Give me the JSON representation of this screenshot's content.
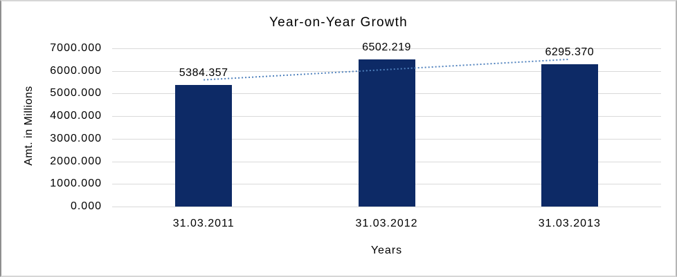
{
  "chart_data": {
    "type": "bar",
    "title": "Year-on-Year Growth",
    "xlabel": "Years",
    "ylabel": "Amt. in Millions",
    "categories": [
      "31.03.2011",
      "31.03.2012",
      "31.03.2013"
    ],
    "values": [
      5384.357,
      6502.219,
      6295.37
    ],
    "data_labels": [
      "5384.357",
      "6502.219",
      "6295.370"
    ],
    "ylim": [
      0,
      7000
    ],
    "ytick_step": 1000,
    "ytick_labels": [
      "0.000",
      "1000.000",
      "2000.000",
      "3000.000",
      "4000.000",
      "5000.000",
      "6000.000",
      "7000.000"
    ],
    "grid": "horizontal",
    "legend": "none",
    "trendline": {
      "type": "linear",
      "style": "dotted",
      "color": "#4f81bd"
    },
    "bar_color": "#0d2a66",
    "gridline_color": "#d9d9d9",
    "text_color": "#000000"
  }
}
